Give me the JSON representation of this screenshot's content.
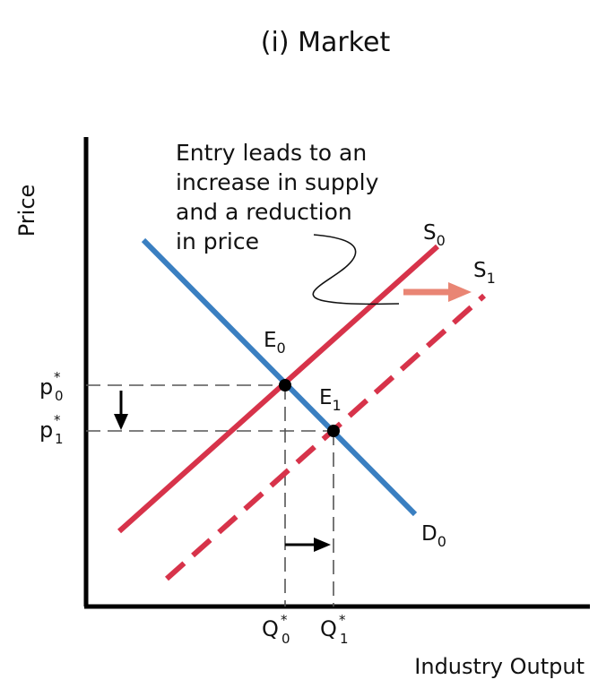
{
  "title": "(i) Market",
  "axes": {
    "y_label": "Price",
    "x_label": "Industry Output"
  },
  "annotation": {
    "lines": [
      "Entry leads to an",
      "increase in supply",
      "and a reduction",
      "in price"
    ]
  },
  "curves": {
    "supply_initial": {
      "main": "S",
      "sub": "0",
      "color": "#d7334a"
    },
    "supply_new": {
      "main": "S",
      "sub": "1",
      "color": "#d7334a"
    },
    "demand": {
      "main": "D",
      "sub": "0",
      "color": "#3a7fc1"
    }
  },
  "equilibria": {
    "initial": {
      "main": "E",
      "sub": "0"
    },
    "new": {
      "main": "E",
      "sub": "1"
    }
  },
  "price_ticks": {
    "initial": {
      "main": "p",
      "sup": "*",
      "sub": "0"
    },
    "new": {
      "main": "p",
      "sup": "*",
      "sub": "1"
    }
  },
  "quantity_ticks": {
    "initial": {
      "main": "Q",
      "sup": "*",
      "sub": "0"
    },
    "new": {
      "main": "Q",
      "sup": "*",
      "sub": "1"
    }
  },
  "colors": {
    "shift_arrow": "#e98574",
    "guide": "#555555",
    "axis": "#000000"
  }
}
